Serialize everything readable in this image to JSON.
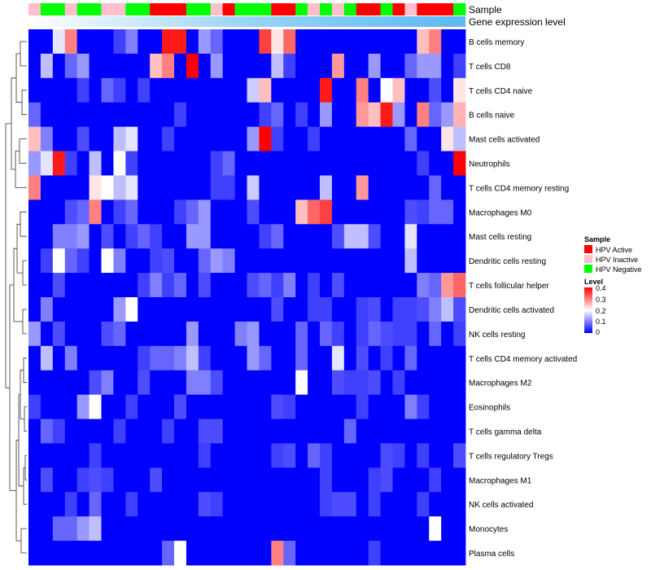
{
  "chart_data": {
    "type": "heatmap",
    "annotation_labels": [
      "Sample",
      "Gene expression level"
    ],
    "rows": [
      "B cells memory",
      "T cells CD8",
      "T cells CD4 naive",
      "B cells naive",
      "Mast cells activated",
      "Neutrophils",
      "T cells CD4 memory resting",
      "Macrophages M0",
      "Mast cells resting",
      "Dendritic cells resting",
      "T cells follicular helper",
      "Dendritic cells activated",
      "NK cells resting",
      "T cells CD4 memory activated",
      "Macrophages M2",
      "Eosinophils",
      "T cells gamma delta",
      "T cells regulatory  Tregs",
      "Macrophages M1",
      "NK cells activated",
      "Monocytes",
      "Plasma cells"
    ],
    "n_columns": 36,
    "sample_groups": [
      "Inactive",
      "Negative",
      "Negative",
      "Inactive",
      "Negative",
      "Negative",
      "Inactive",
      "Inactive",
      "Negative",
      "Negative",
      "Active",
      "Active",
      "Active",
      "Negative",
      "Negative",
      "Inactive",
      "Active",
      "Negative",
      "Negative",
      "Negative",
      "Active",
      "Active",
      "Negative",
      "Inactive",
      "Negative",
      "Inactive",
      "Negative",
      "Active",
      "Active",
      "Negative",
      "Active",
      "Inactive",
      "Active",
      "Active",
      "Active",
      "Negative"
    ],
    "sample_colors": {
      "Active": "#ff0000",
      "Inactive": "#ffc0cb",
      "Negative": "#00ff00"
    },
    "gene_expression_gradient": [
      "#ffffff",
      "#9ad4f5",
      "#5cb8f2"
    ],
    "color_scale": {
      "min": 0,
      "mid": 0.2,
      "max": 0.4,
      "low": "#0000ff",
      "mid_color": "#ffffff",
      "high": "#ff0000"
    },
    "values": [
      [
        0.0,
        0.0,
        0.18,
        0.3,
        0.0,
        0.0,
        0.0,
        0.05,
        0.1,
        0.0,
        0.0,
        0.38,
        0.38,
        0.0,
        0.12,
        0.08,
        0.0,
        0.0,
        0.0,
        0.35,
        0.22,
        0.32,
        0.0,
        0.0,
        0.0,
        0.0,
        0.0,
        0.0,
        0.0,
        0.0,
        0.0,
        0.0,
        0.25,
        0.3,
        0.0,
        0.0
      ],
      [
        0.0,
        0.15,
        0.0,
        0.08,
        0.12,
        0.0,
        0.0,
        0.0,
        0.0,
        0.0,
        0.25,
        0.3,
        0.0,
        0.4,
        0.0,
        0.12,
        0.0,
        0.0,
        0.0,
        0.0,
        0.15,
        0.05,
        0.0,
        0.0,
        0.0,
        0.28,
        0.0,
        0.0,
        0.12,
        0.0,
        0.0,
        0.08,
        0.12,
        0.12,
        0.0,
        0.05
      ],
      [
        0.0,
        0.0,
        0.0,
        0.0,
        0.05,
        0.0,
        0.08,
        0.05,
        0.0,
        0.05,
        0.0,
        0.0,
        0.0,
        0.0,
        0.0,
        0.0,
        0.0,
        0.0,
        0.16,
        0.25,
        0.0,
        0.0,
        0.0,
        0.0,
        0.38,
        0.0,
        0.0,
        0.3,
        0.0,
        0.2,
        0.25,
        0.0,
        0.0,
        0.06,
        0.0,
        0.22
      ],
      [
        0.08,
        0.0,
        0.0,
        0.0,
        0.0,
        0.0,
        0.0,
        0.0,
        0.0,
        0.0,
        0.0,
        0.0,
        0.05,
        0.0,
        0.0,
        0.0,
        0.0,
        0.0,
        0.0,
        0.05,
        0.08,
        0.0,
        0.05,
        0.0,
        0.12,
        0.0,
        0.0,
        0.28,
        0.25,
        0.38,
        0.12,
        0.0,
        0.3,
        0.08,
        0.12,
        0.26
      ],
      [
        0.25,
        0.1,
        0.0,
        0.0,
        0.06,
        0.0,
        0.0,
        0.15,
        0.18,
        0.0,
        0.0,
        0.05,
        0.0,
        0.0,
        0.0,
        0.0,
        0.0,
        0.0,
        0.12,
        0.4,
        0.05,
        0.0,
        0.0,
        0.05,
        0.0,
        0.0,
        0.0,
        0.0,
        0.0,
        0.0,
        0.0,
        0.08,
        0.0,
        0.0,
        0.22,
        0.15
      ],
      [
        0.12,
        0.18,
        0.38,
        0.05,
        0.0,
        0.15,
        0.0,
        0.2,
        0.05,
        0.0,
        0.0,
        0.0,
        0.0,
        0.0,
        0.0,
        0.05,
        0.08,
        0.0,
        0.0,
        0.0,
        0.0,
        0.0,
        0.0,
        0.0,
        0.0,
        0.0,
        0.0,
        0.0,
        0.0,
        0.0,
        0.0,
        0.0,
        0.05,
        0.0,
        0.0,
        0.4
      ],
      [
        0.3,
        0.0,
        0.0,
        0.0,
        0.0,
        0.22,
        0.2,
        0.15,
        0.18,
        0.0,
        0.0,
        0.0,
        0.0,
        0.0,
        0.0,
        0.05,
        0.05,
        0.0,
        0.16,
        0.0,
        0.0,
        0.0,
        0.0,
        0.0,
        0.15,
        0.0,
        0.0,
        0.28,
        0.0,
        0.0,
        0.0,
        0.0,
        0.0,
        0.08,
        0.0,
        0.0
      ],
      [
        0.0,
        0.0,
        0.0,
        0.06,
        0.08,
        0.3,
        0.0,
        0.05,
        0.08,
        0.0,
        0.0,
        0.0,
        0.05,
        0.08,
        0.12,
        0.0,
        0.0,
        0.0,
        0.06,
        0.0,
        0.0,
        0.0,
        0.25,
        0.32,
        0.35,
        0.0,
        0.0,
        0.0,
        0.0,
        0.0,
        0.0,
        0.06,
        0.05,
        0.08,
        0.08,
        0.0
      ],
      [
        0.0,
        0.0,
        0.1,
        0.1,
        0.12,
        0.0,
        0.06,
        0.0,
        0.05,
        0.08,
        0.05,
        0.0,
        0.0,
        0.12,
        0.12,
        0.0,
        0.0,
        0.0,
        0.0,
        0.05,
        0.08,
        0.0,
        0.0,
        0.0,
        0.0,
        0.06,
        0.15,
        0.15,
        0.06,
        0.0,
        0.0,
        0.18,
        0.0,
        0.0,
        0.0,
        0.0
      ],
      [
        0.0,
        0.05,
        0.2,
        0.08,
        0.05,
        0.0,
        0.2,
        0.1,
        0.0,
        0.0,
        0.05,
        0.06,
        0.0,
        0.0,
        0.08,
        0.12,
        0.1,
        0.0,
        0.0,
        0.0,
        0.0,
        0.0,
        0.0,
        0.0,
        0.0,
        0.0,
        0.0,
        0.0,
        0.0,
        0.0,
        0.0,
        0.15,
        0.0,
        0.0,
        0.0,
        0.0
      ],
      [
        0.0,
        0.0,
        0.06,
        0.0,
        0.0,
        0.0,
        0.0,
        0.0,
        0.0,
        0.05,
        0.1,
        0.05,
        0.08,
        0.0,
        0.06,
        0.0,
        0.0,
        0.0,
        0.06,
        0.08,
        0.05,
        0.1,
        0.0,
        0.05,
        0.0,
        0.06,
        0.0,
        0.0,
        0.0,
        0.0,
        0.0,
        0.0,
        0.1,
        0.08,
        0.28,
        0.32
      ],
      [
        0.0,
        0.1,
        0.0,
        0.0,
        0.0,
        0.0,
        0.0,
        0.12,
        0.2,
        0.0,
        0.0,
        0.0,
        0.0,
        0.0,
        0.0,
        0.0,
        0.0,
        0.0,
        0.0,
        0.0,
        0.06,
        0.0,
        0.0,
        0.05,
        0.05,
        0.0,
        0.0,
        0.05,
        0.06,
        0.0,
        0.05,
        0.05,
        0.06,
        0.1,
        0.15,
        0.06
      ],
      [
        0.12,
        0.0,
        0.06,
        0.0,
        0.0,
        0.0,
        0.06,
        0.08,
        0.0,
        0.0,
        0.0,
        0.0,
        0.0,
        0.12,
        0.0,
        0.0,
        0.0,
        0.1,
        0.12,
        0.0,
        0.0,
        0.0,
        0.08,
        0.0,
        0.08,
        0.05,
        0.0,
        0.05,
        0.08,
        0.06,
        0.05,
        0.05,
        0.0,
        0.08,
        0.0,
        0.05
      ],
      [
        0.0,
        0.15,
        0.0,
        0.1,
        0.0,
        0.0,
        0.0,
        0.0,
        0.0,
        0.05,
        0.08,
        0.08,
        0.1,
        0.15,
        0.05,
        0.0,
        0.0,
        0.0,
        0.12,
        0.08,
        0.0,
        0.0,
        0.08,
        0.0,
        0.0,
        0.18,
        0.0,
        0.06,
        0.0,
        0.05,
        0.0,
        0.08,
        0.0,
        0.0,
        0.0,
        0.0
      ],
      [
        0.0,
        0.0,
        0.0,
        0.0,
        0.0,
        0.06,
        0.1,
        0.0,
        0.0,
        0.06,
        0.0,
        0.0,
        0.0,
        0.1,
        0.1,
        0.06,
        0.0,
        0.0,
        0.0,
        0.0,
        0.0,
        0.0,
        0.2,
        0.0,
        0.0,
        0.06,
        0.05,
        0.05,
        0.06,
        0.0,
        0.05,
        0.0,
        0.0,
        0.0,
        0.0,
        0.0
      ],
      [
        0.05,
        0.0,
        0.0,
        0.0,
        0.12,
        0.2,
        0.0,
        0.0,
        0.05,
        0.0,
        0.0,
        0.0,
        0.06,
        0.0,
        0.0,
        0.0,
        0.0,
        0.0,
        0.0,
        0.0,
        0.06,
        0.05,
        0.0,
        0.0,
        0.0,
        0.0,
        0.0,
        0.05,
        0.0,
        0.0,
        0.0,
        0.1,
        0.05,
        0.0,
        0.0,
        0.0
      ],
      [
        0.0,
        0.08,
        0.05,
        0.0,
        0.0,
        0.0,
        0.0,
        0.05,
        0.0,
        0.0,
        0.0,
        0.05,
        0.0,
        0.0,
        0.06,
        0.06,
        0.0,
        0.0,
        0.0,
        0.0,
        0.0,
        0.0,
        0.0,
        0.0,
        0.0,
        0.0,
        0.08,
        0.0,
        0.0,
        0.0,
        0.0,
        0.0,
        0.0,
        0.0,
        0.0,
        0.0
      ],
      [
        0.0,
        0.0,
        0.0,
        0.0,
        0.0,
        0.05,
        0.0,
        0.0,
        0.0,
        0.0,
        0.0,
        0.0,
        0.0,
        0.0,
        0.05,
        0.0,
        0.0,
        0.0,
        0.0,
        0.0,
        0.05,
        0.06,
        0.0,
        0.08,
        0.05,
        0.0,
        0.0,
        0.0,
        0.0,
        0.06,
        0.05,
        0.0,
        0.05,
        0.0,
        0.0,
        0.06
      ],
      [
        0.0,
        0.06,
        0.0,
        0.0,
        0.05,
        0.06,
        0.05,
        0.0,
        0.0,
        0.0,
        0.06,
        0.0,
        0.0,
        0.0,
        0.0,
        0.0,
        0.0,
        0.0,
        0.0,
        0.0,
        0.0,
        0.0,
        0.0,
        0.0,
        0.05,
        0.0,
        0.0,
        0.0,
        0.05,
        0.06,
        0.0,
        0.0,
        0.0,
        0.05,
        0.0,
        0.0
      ],
      [
        0.0,
        0.0,
        0.0,
        0.05,
        0.0,
        0.08,
        0.0,
        0.0,
        0.05,
        0.0,
        0.0,
        0.0,
        0.0,
        0.0,
        0.06,
        0.05,
        0.0,
        0.0,
        0.0,
        0.0,
        0.0,
        0.0,
        0.0,
        0.0,
        0.05,
        0.06,
        0.06,
        0.0,
        0.05,
        0.0,
        0.0,
        0.0,
        0.05,
        0.0,
        0.0,
        0.0
      ],
      [
        0.0,
        0.0,
        0.08,
        0.08,
        0.12,
        0.15,
        0.0,
        0.0,
        0.0,
        0.0,
        0.0,
        0.0,
        0.0,
        0.0,
        0.0,
        0.0,
        0.0,
        0.0,
        0.0,
        0.0,
        0.0,
        0.0,
        0.0,
        0.0,
        0.0,
        0.0,
        0.0,
        0.0,
        0.0,
        0.0,
        0.0,
        0.0,
        0.0,
        0.2,
        0.0,
        0.0
      ],
      [
        0.0,
        0.0,
        0.0,
        0.0,
        0.0,
        0.0,
        0.0,
        0.0,
        0.0,
        0.0,
        0.0,
        0.08,
        0.2,
        0.0,
        0.0,
        0.0,
        0.0,
        0.0,
        0.0,
        0.0,
        0.3,
        0.08,
        0.0,
        0.0,
        0.0,
        0.0,
        0.0,
        0.0,
        0.05,
        0.0,
        0.0,
        0.0,
        0.0,
        0.0,
        0.0,
        0.0
      ]
    ]
  },
  "legend": {
    "sample_title": "Sample",
    "sample_items": [
      {
        "label": "HPV Active",
        "color": "#ff0000"
      },
      {
        "label": "HPV Inactive",
        "color": "#ffc0cb"
      },
      {
        "label": "HPV Negative",
        "color": "#00ff00"
      }
    ],
    "level_title": "Level",
    "level_ticks": [
      "0.4",
      "0.3",
      "0.2",
      "0.1",
      "0"
    ]
  }
}
